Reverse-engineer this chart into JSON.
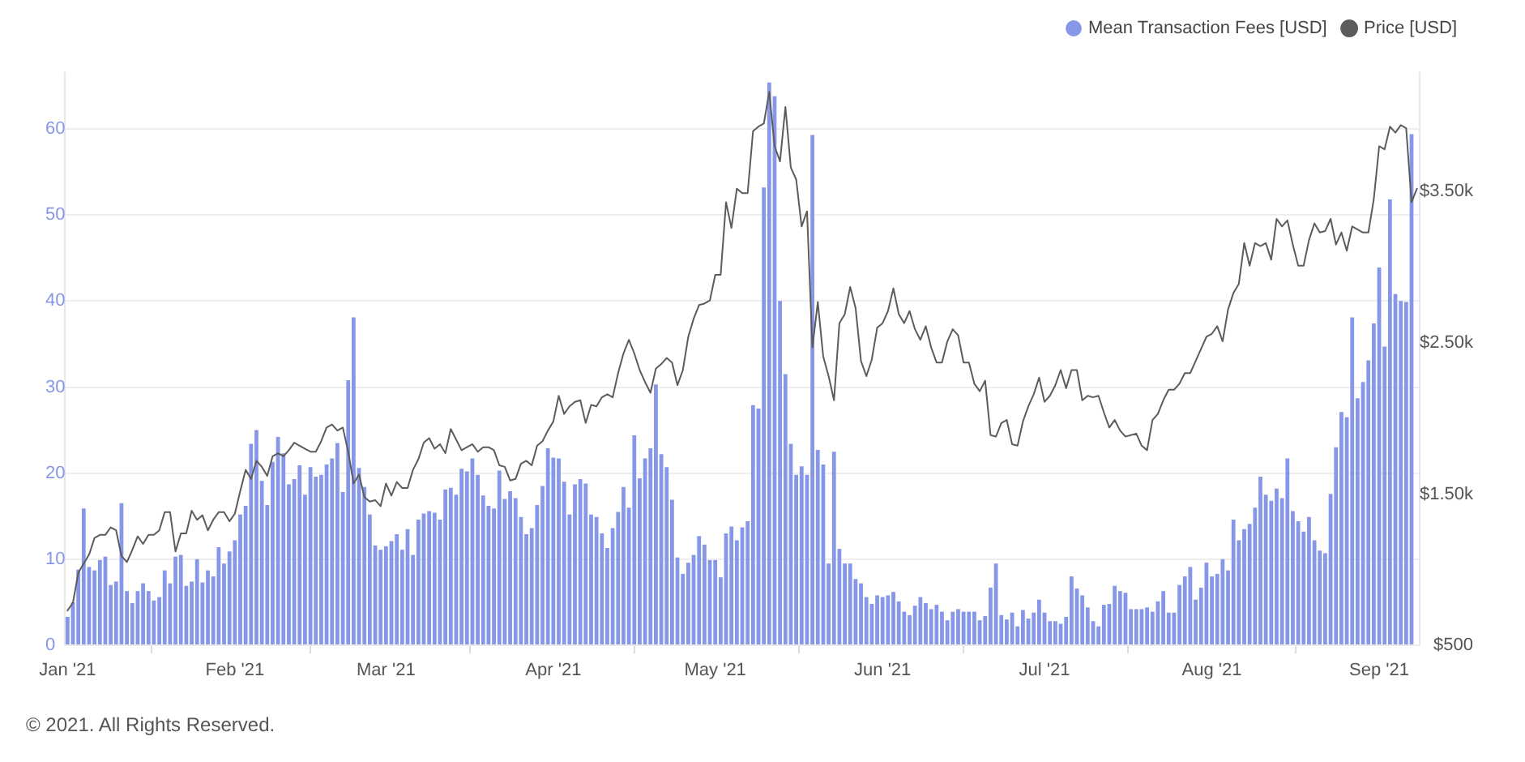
{
  "chart_data": {
    "type": "bar",
    "x": [
      "2021-01-01",
      "2021-01-02",
      "2021-01-03",
      "2021-01-04",
      "2021-01-05",
      "2021-01-06",
      "2021-01-07",
      "2021-01-08",
      "2021-01-09",
      "2021-01-10",
      "2021-01-11",
      "2021-01-12",
      "2021-01-13",
      "2021-01-14",
      "2021-01-15",
      "2021-01-16",
      "2021-01-17",
      "2021-01-18",
      "2021-01-19",
      "2021-01-20",
      "2021-01-21",
      "2021-01-22",
      "2021-01-23",
      "2021-01-24",
      "2021-01-25",
      "2021-01-26",
      "2021-01-27",
      "2021-01-28",
      "2021-01-29",
      "2021-01-30",
      "2021-01-31",
      "2021-02-01",
      "2021-02-02",
      "2021-02-03",
      "2021-02-04",
      "2021-02-05",
      "2021-02-06",
      "2021-02-07",
      "2021-02-08",
      "2021-02-09",
      "2021-02-10",
      "2021-02-11",
      "2021-02-12",
      "2021-02-13",
      "2021-02-14",
      "2021-02-15",
      "2021-02-16",
      "2021-02-17",
      "2021-02-18",
      "2021-02-19",
      "2021-02-20",
      "2021-02-21",
      "2021-02-22",
      "2021-02-23",
      "2021-02-24",
      "2021-02-25",
      "2021-02-26",
      "2021-02-27",
      "2021-02-28",
      "2021-03-01",
      "2021-03-02",
      "2021-03-03",
      "2021-03-04",
      "2021-03-05",
      "2021-03-06",
      "2021-03-07",
      "2021-03-08",
      "2021-03-09",
      "2021-03-10",
      "2021-03-11",
      "2021-03-12",
      "2021-03-13",
      "2021-03-14",
      "2021-03-15",
      "2021-03-16",
      "2021-03-17",
      "2021-03-18",
      "2021-03-19",
      "2021-03-20",
      "2021-03-21",
      "2021-03-22",
      "2021-03-23",
      "2021-03-24",
      "2021-03-25",
      "2021-03-26",
      "2021-03-27",
      "2021-03-28",
      "2021-03-29",
      "2021-03-30",
      "2021-03-31",
      "2021-04-01",
      "2021-04-02",
      "2021-04-03",
      "2021-04-04",
      "2021-04-05",
      "2021-04-06",
      "2021-04-07",
      "2021-04-08",
      "2021-04-09",
      "2021-04-10",
      "2021-04-11",
      "2021-04-12",
      "2021-04-13",
      "2021-04-14",
      "2021-04-15",
      "2021-04-16",
      "2021-04-17",
      "2021-04-18",
      "2021-04-19",
      "2021-04-20",
      "2021-04-21",
      "2021-04-22",
      "2021-04-23",
      "2021-04-24",
      "2021-04-25",
      "2021-04-26",
      "2021-04-27",
      "2021-04-28",
      "2021-04-29",
      "2021-04-30",
      "2021-05-01",
      "2021-05-02",
      "2021-05-03",
      "2021-05-04",
      "2021-05-05",
      "2021-05-06",
      "2021-05-07",
      "2021-05-08",
      "2021-05-09",
      "2021-05-10",
      "2021-05-11",
      "2021-05-12",
      "2021-05-13",
      "2021-05-14",
      "2021-05-15",
      "2021-05-16",
      "2021-05-17",
      "2021-05-18",
      "2021-05-19",
      "2021-05-20",
      "2021-05-21",
      "2021-05-22",
      "2021-05-23",
      "2021-05-24",
      "2021-05-25",
      "2021-05-26",
      "2021-05-27",
      "2021-05-28",
      "2021-05-29",
      "2021-05-30",
      "2021-05-31",
      "2021-06-01",
      "2021-06-02",
      "2021-06-03",
      "2021-06-04",
      "2021-06-05",
      "2021-06-06",
      "2021-06-07",
      "2021-06-08",
      "2021-06-09",
      "2021-06-10",
      "2021-06-11",
      "2021-06-12",
      "2021-06-13",
      "2021-06-14",
      "2021-06-15",
      "2021-06-16",
      "2021-06-17",
      "2021-06-18",
      "2021-06-19",
      "2021-06-20",
      "2021-06-21",
      "2021-06-22",
      "2021-06-23",
      "2021-06-24",
      "2021-06-25",
      "2021-06-26",
      "2021-06-27",
      "2021-06-28",
      "2021-06-29",
      "2021-06-30",
      "2021-07-01",
      "2021-07-02",
      "2021-07-03",
      "2021-07-04",
      "2021-07-05",
      "2021-07-06",
      "2021-07-07",
      "2021-07-08",
      "2021-07-09",
      "2021-07-10",
      "2021-07-11",
      "2021-07-12",
      "2021-07-13",
      "2021-07-14",
      "2021-07-15",
      "2021-07-16",
      "2021-07-17",
      "2021-07-18",
      "2021-07-19",
      "2021-07-20",
      "2021-07-21",
      "2021-07-22",
      "2021-07-23",
      "2021-07-24",
      "2021-07-25",
      "2021-07-26",
      "2021-07-27",
      "2021-07-28",
      "2021-07-29",
      "2021-07-30",
      "2021-07-31",
      "2021-08-01",
      "2021-08-02",
      "2021-08-03",
      "2021-08-04",
      "2021-08-05",
      "2021-08-06",
      "2021-08-07",
      "2021-08-08",
      "2021-08-09",
      "2021-08-10",
      "2021-08-11",
      "2021-08-12",
      "2021-08-13",
      "2021-08-14",
      "2021-08-15",
      "2021-08-16",
      "2021-08-17",
      "2021-08-18",
      "2021-08-19",
      "2021-08-20",
      "2021-08-21",
      "2021-08-22",
      "2021-08-23",
      "2021-08-24",
      "2021-08-25",
      "2021-08-26",
      "2021-08-27",
      "2021-08-28",
      "2021-08-29",
      "2021-08-30",
      "2021-08-31",
      "2021-09-01",
      "2021-09-02",
      "2021-09-03",
      "2021-09-04",
      "2021-09-05",
      "2021-09-06",
      "2021-09-07",
      "2021-09-08"
    ],
    "xlim": [
      "2020-12-31T12:00",
      "2021-09-08T12:00"
    ],
    "xticks": [
      {
        "value": "2021-01-01",
        "label": "Jan '21"
      },
      {
        "value": "2021-02-01",
        "label": "Feb '21"
      },
      {
        "value": "2021-03-01",
        "label": "Mar '21"
      },
      {
        "value": "2021-04-01",
        "label": "Apr '21"
      },
      {
        "value": "2021-05-01",
        "label": "May '21"
      },
      {
        "value": "2021-06-01",
        "label": "Jun '21"
      },
      {
        "value": "2021-07-01",
        "label": "Jul '21"
      },
      {
        "value": "2021-08-01",
        "label": "Aug '21"
      },
      {
        "value": "2021-09-01",
        "label": "Sep '21"
      }
    ],
    "ylim": [
      0,
      66.5
    ],
    "yticks": [
      0,
      10,
      20,
      30,
      40,
      50,
      60
    ],
    "y2lim": [
      500,
      4285
    ],
    "y2ticks": [
      {
        "value": 500,
        "label": "$500"
      },
      {
        "value": 1500,
        "label": "$1.50k"
      },
      {
        "value": 2500,
        "label": "$2.50k"
      },
      {
        "value": 3500,
        "label": "$3.50k"
      }
    ],
    "grid": "y",
    "legend": "top right",
    "marker": "none",
    "series": [
      {
        "name": "Mean Transaction Fees [USD]",
        "color": "#8797e8",
        "values": [
          3.3,
          5.0,
          8.8,
          15.9,
          9.1,
          8.7,
          9.9,
          10.3,
          7.0,
          7.4,
          16.5,
          6.3,
          4.9,
          6.3,
          7.2,
          6.3,
          5.2,
          5.6,
          8.7,
          7.2,
          10.3,
          10.5,
          6.9,
          7.4,
          10.0,
          7.3,
          8.7,
          8.0,
          11.4,
          9.5,
          10.9,
          12.2,
          15.2,
          16.2,
          23.4,
          25.0,
          19.1,
          16.3,
          21.3,
          24.2,
          22.3,
          18.7,
          19.3,
          20.9,
          17.5,
          20.7,
          19.6,
          19.8,
          21.0,
          21.7,
          23.5,
          17.8,
          30.8,
          38.1,
          20.6,
          18.4,
          15.2,
          11.6,
          11.1,
          11.5,
          12.1,
          12.9,
          11.1,
          13.5,
          10.5,
          14.6,
          15.3,
          15.6,
          15.4,
          14.6,
          18.1,
          18.3,
          17.5,
          20.5,
          20.2,
          21.7,
          19.8,
          17.4,
          16.2,
          15.9,
          20.3,
          17.0,
          17.9,
          17.1,
          14.9,
          12.9,
          13.6,
          16.3,
          18.5,
          22.9,
          21.8,
          21.7,
          19.0,
          15.2,
          18.7,
          19.3,
          18.8,
          15.2,
          14.9,
          13.0,
          11.3,
          13.6,
          15.5,
          18.4,
          16.0,
          24.4,
          19.4,
          21.7,
          22.9,
          30.3,
          22.2,
          20.7,
          16.9,
          10.2,
          8.3,
          9.6,
          10.5,
          12.7,
          11.7,
          9.9,
          9.9,
          7.9,
          13.0,
          13.8,
          12.2,
          13.7,
          14.4,
          27.9,
          27.5,
          53.2,
          65.4,
          63.8,
          40.0,
          31.5,
          23.4,
          19.8,
          20.8,
          19.8,
          59.3,
          22.7,
          21.0,
          9.5,
          22.5,
          11.2,
          9.5,
          9.5,
          7.7,
          7.2,
          5.6,
          4.8,
          5.8,
          5.6,
          5.8,
          6.2,
          5.1,
          3.9,
          3.5,
          4.6,
          5.6,
          4.9,
          4.2,
          4.7,
          3.9,
          2.9,
          3.9,
          4.2,
          3.9,
          3.9,
          3.9,
          2.9,
          3.4,
          6.7,
          9.5,
          3.5,
          3.0,
          3.8,
          2.2,
          4.1,
          3.1,
          3.8,
          5.3,
          3.8,
          2.8,
          2.8,
          2.5,
          3.3,
          8.0,
          6.6,
          5.8,
          4.4,
          2.8,
          2.2,
          4.7,
          4.8,
          6.9,
          6.3,
          6.1,
          4.2,
          4.2,
          4.2,
          4.4,
          3.9,
          5.1,
          6.3,
          3.8,
          3.8,
          7.0,
          8.0,
          9.1,
          5.3,
          6.7,
          9.6,
          8.0,
          8.3,
          10.0,
          8.7,
          14.6,
          12.2,
          13.5,
          14.1,
          16.0,
          19.6,
          17.5,
          16.8,
          18.2,
          17.1,
          21.7,
          15.6,
          14.4,
          13.2,
          14.9,
          12.2,
          11.0,
          10.7,
          17.6,
          23.0,
          27.1,
          26.5,
          38.1,
          28.7,
          30.6,
          33.1,
          37.4,
          43.9,
          34.7,
          51.8,
          40.8,
          40.0,
          39.9,
          59.4,
          null
        ]
      },
      {
        "name": "Price [USD]",
        "type": "line",
        "axis": "y2",
        "color": "#5c5c5c",
        "values": [
          730,
          780,
          980,
          1040,
          1100,
          1210,
          1230,
          1230,
          1280,
          1260,
          1090,
          1050,
          1130,
          1220,
          1170,
          1230,
          1230,
          1260,
          1380,
          1380,
          1120,
          1240,
          1240,
          1390,
          1330,
          1360,
          1260,
          1330,
          1380,
          1380,
          1320,
          1370,
          1520,
          1660,
          1600,
          1720,
          1680,
          1620,
          1750,
          1770,
          1750,
          1790,
          1840,
          1820,
          1800,
          1780,
          1780,
          1850,
          1940,
          1960,
          1920,
          1940,
          1780,
          1570,
          1630,
          1480,
          1450,
          1460,
          1420,
          1570,
          1490,
          1580,
          1540,
          1540,
          1660,
          1730,
          1840,
          1870,
          1800,
          1830,
          1770,
          1930,
          1860,
          1790,
          1810,
          1830,
          1780,
          1810,
          1810,
          1790,
          1690,
          1680,
          1590,
          1600,
          1700,
          1720,
          1690,
          1820,
          1850,
          1920,
          1980,
          2150,
          2030,
          2080,
          2110,
          2120,
          1970,
          2090,
          2080,
          2140,
          2160,
          2140,
          2300,
          2430,
          2520,
          2430,
          2320,
          2240,
          2170,
          2330,
          2360,
          2400,
          2370,
          2220,
          2320,
          2540,
          2660,
          2750,
          2760,
          2780,
          2950,
          2950,
          3430,
          3260,
          3520,
          3490,
          3490,
          3900,
          3930,
          3950,
          4160,
          3800,
          3700,
          4060,
          3660,
          3580,
          3270,
          3370,
          2470,
          2770,
          2410,
          2280,
          2120,
          2630,
          2690,
          2870,
          2730,
          2380,
          2280,
          2390,
          2600,
          2630,
          2710,
          2860,
          2690,
          2630,
          2710,
          2590,
          2520,
          2610,
          2470,
          2370,
          2370,
          2510,
          2590,
          2550,
          2370,
          2370,
          2230,
          2180,
          2250,
          1890,
          1880,
          1970,
          1990,
          1830,
          1820,
          1980,
          2080,
          2160,
          2270,
          2110,
          2150,
          2220,
          2320,
          2200,
          2320,
          2320,
          2120,
          2150,
          2140,
          2150,
          2040,
          1940,
          1990,
          1920,
          1880,
          1890,
          1900,
          1820,
          1790,
          1990,
          2030,
          2120,
          2190,
          2190,
          2230,
          2300,
          2300,
          2380,
          2460,
          2540,
          2560,
          2610,
          2510,
          2720,
          2830,
          2890,
          3160,
          3010,
          3160,
          3140,
          3160,
          3050,
          3320,
          3270,
          3310,
          3150,
          3010,
          3010,
          3180,
          3290,
          3230,
          3240,
          3320,
          3150,
          3230,
          3110,
          3270,
          3250,
          3230,
          3230,
          3450,
          3800,
          3780,
          3930,
          3890,
          3940,
          3920,
          3430,
          3520
        ]
      }
    ],
    "annotations": [
      "© 2021. All Rights Reserved."
    ]
  }
}
